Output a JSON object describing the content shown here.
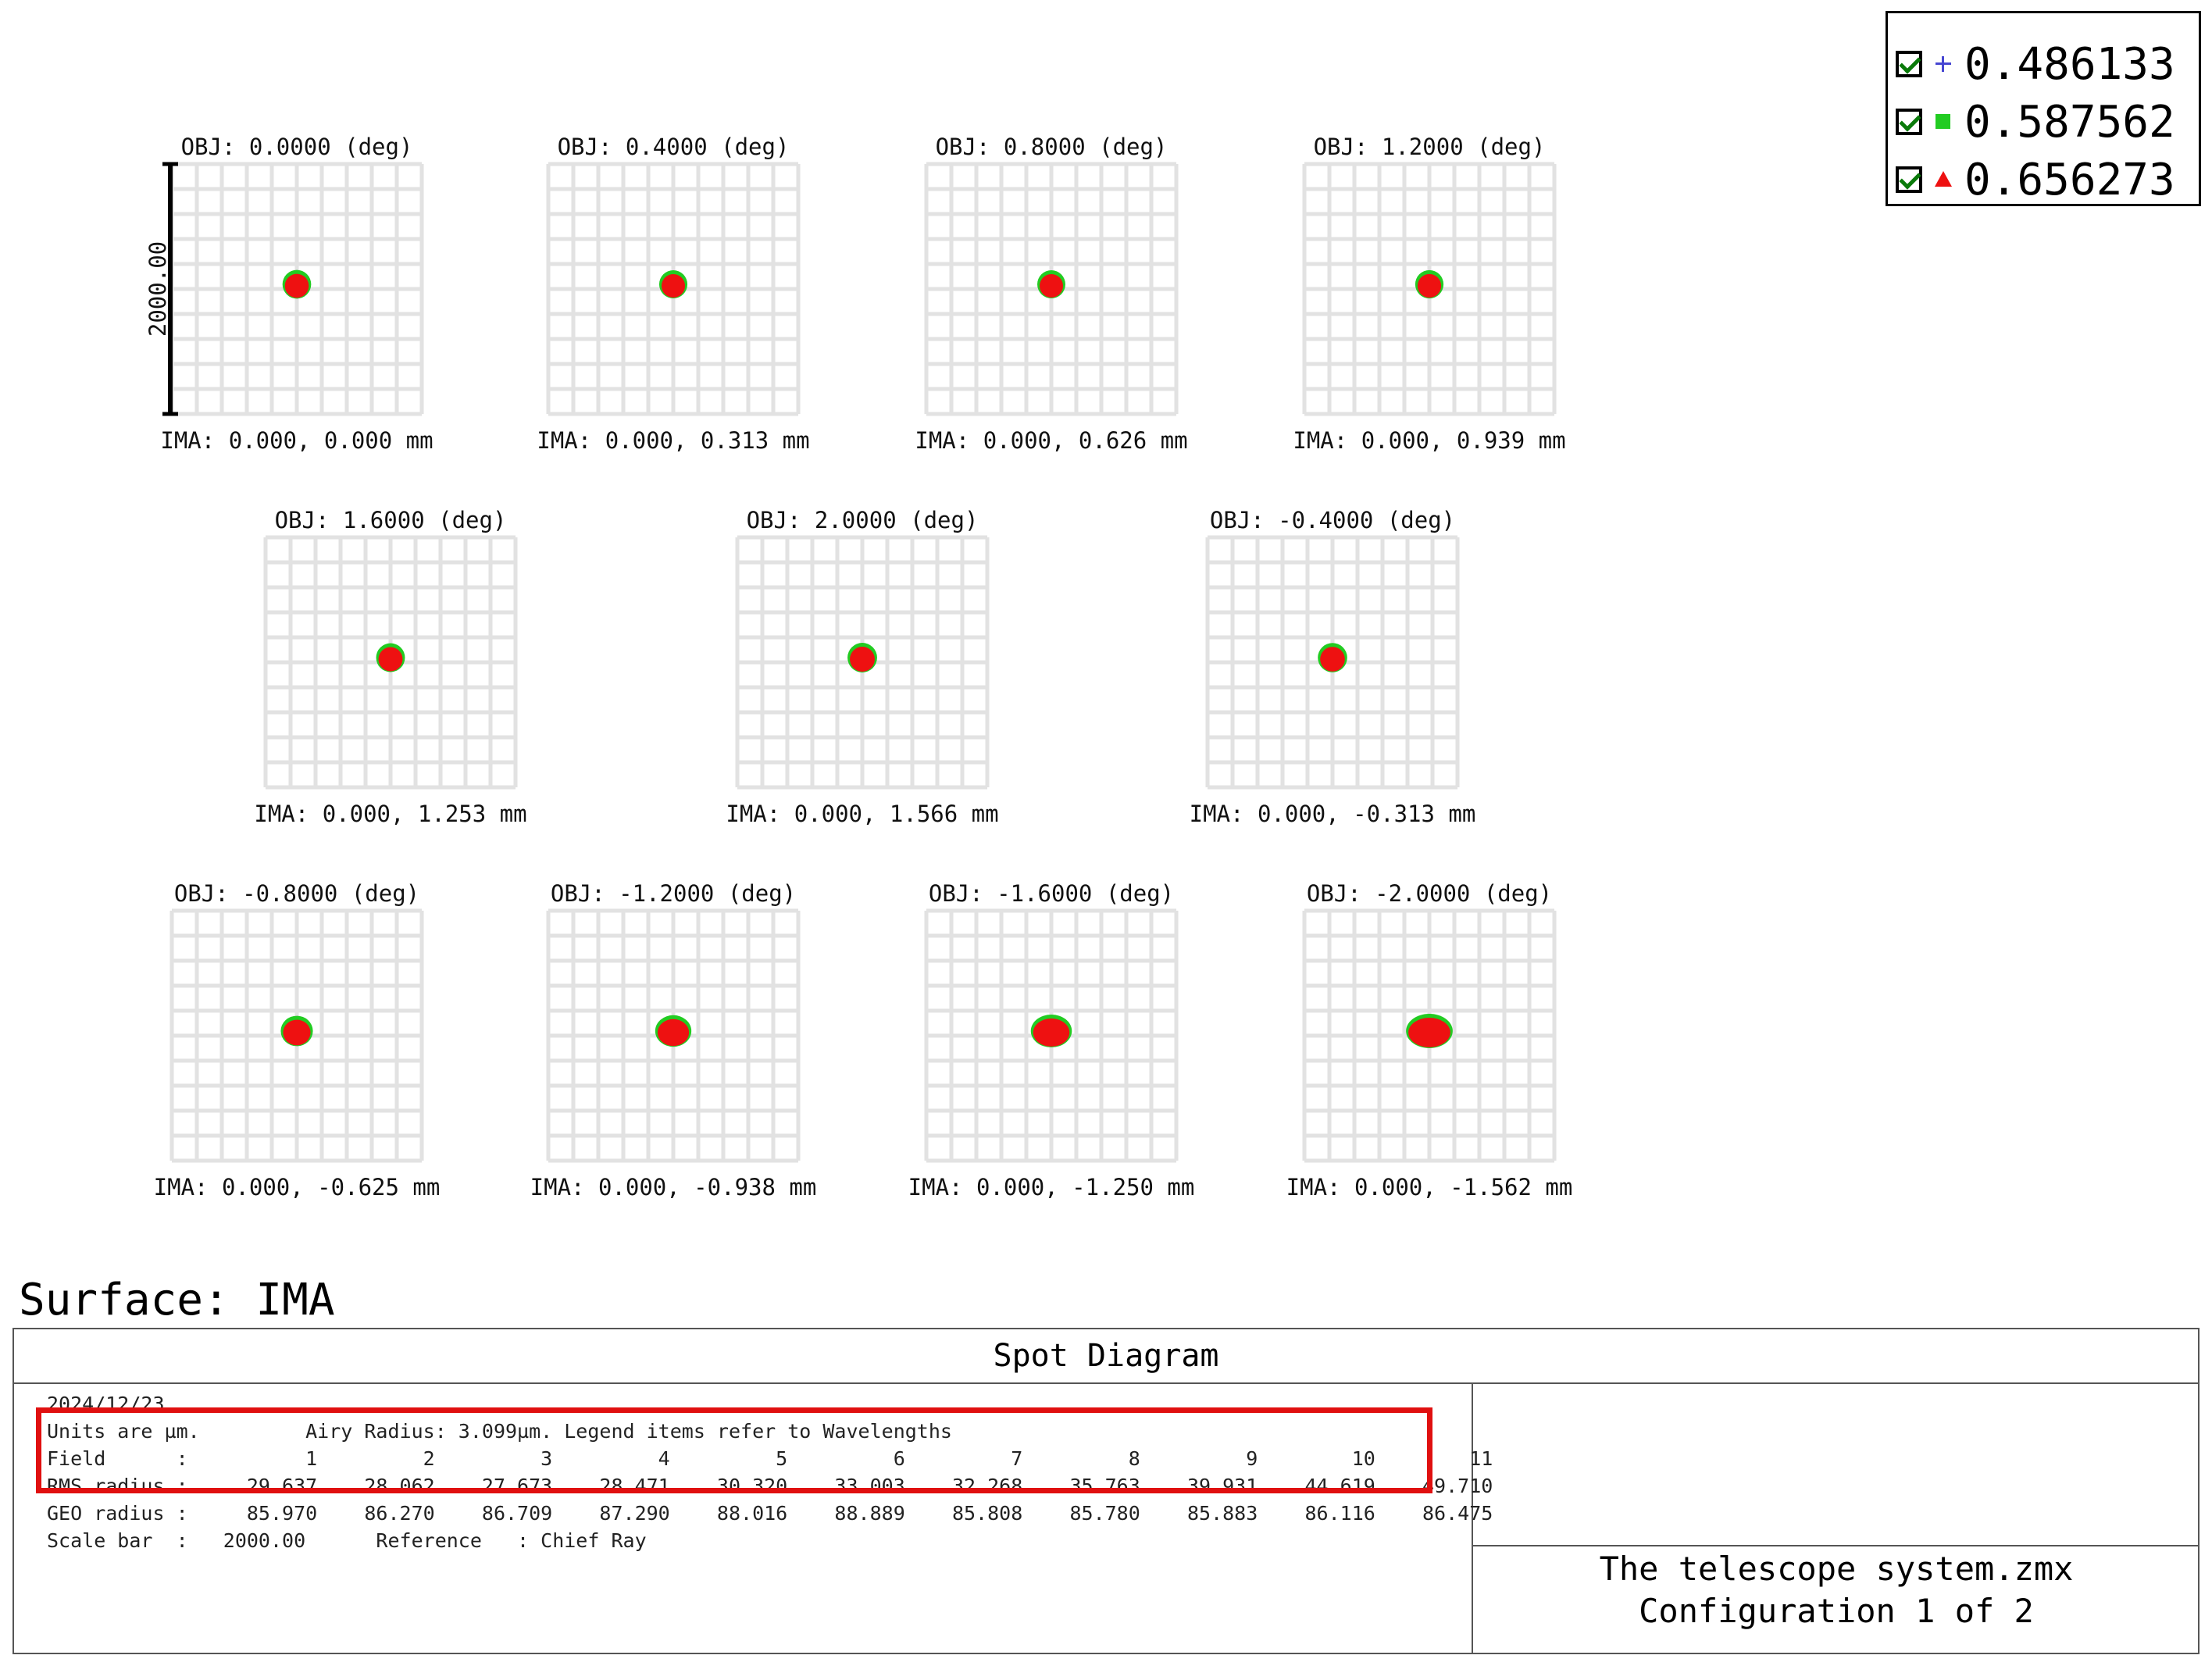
{
  "chart_data": {
    "type": "scatter",
    "title": "Spot Diagram",
    "surface": "Surface: IMA",
    "scale_bar": "2000.00",
    "legend": {
      "placement": "top-right",
      "items": [
        {
          "label": "0.486133",
          "marker": "plus",
          "color": "#4646d2",
          "checked": true
        },
        {
          "label": "0.587562",
          "marker": "square",
          "color": "#22cc22",
          "checked": true
        },
        {
          "label": "0.656273",
          "marker": "triangle",
          "color": "#ee1111",
          "checked": true
        }
      ]
    },
    "fields": [
      {
        "obj": "OBJ: 0.0000 (deg)",
        "ima": "IMA: 0.000, 0.000 mm",
        "rms_radius": 29.637,
        "geo_radius": 85.97
      },
      {
        "obj": "OBJ: 0.4000 (deg)",
        "ima": "IMA: 0.000, 0.313 mm",
        "rms_radius": 28.062,
        "geo_radius": 86.27
      },
      {
        "obj": "OBJ: 0.8000 (deg)",
        "ima": "IMA: 0.000, 0.626 mm",
        "rms_radius": 27.673,
        "geo_radius": 86.709
      },
      {
        "obj": "OBJ: 1.2000 (deg)",
        "ima": "IMA: 0.000, 0.939 mm",
        "rms_radius": 28.471,
        "geo_radius": 87.29
      },
      {
        "obj": "OBJ: 1.6000 (deg)",
        "ima": "IMA: 0.000, 1.253 mm",
        "rms_radius": 30.32,
        "geo_radius": 88.016
      },
      {
        "obj": "OBJ: 2.0000 (deg)",
        "ima": "IMA: 0.000, 1.566 mm",
        "rms_radius": 33.003,
        "geo_radius": 88.889
      },
      {
        "obj": "OBJ: -0.4000 (deg)",
        "ima": "IMA: 0.000, -0.313 mm",
        "rms_radius": 32.268,
        "geo_radius": 85.808
      },
      {
        "obj": "OBJ: -0.8000 (deg)",
        "ima": "IMA: 0.000, -0.625 mm",
        "rms_radius": 35.763,
        "geo_radius": 85.78
      },
      {
        "obj": "OBJ: -1.2000 (deg)",
        "ima": "IMA: 0.000, -0.938 mm",
        "rms_radius": 39.931,
        "geo_radius": 85.883
      },
      {
        "obj": "OBJ: -1.6000 (deg)",
        "ima": "IMA: 0.000, -1.250 mm",
        "rms_radius": 44.619,
        "geo_radius": 86.116
      },
      {
        "obj": "OBJ: -2.0000 (deg)",
        "ima": "IMA: 0.000, -1.562 mm",
        "rms_radius": 49.71,
        "geo_radius": 86.475
      }
    ]
  },
  "info": {
    "date": "2024/12/23",
    "units_line": "Units are µm.         Airy Radius: 3.099µm. Legend items refer to Wavelengths",
    "field_line": "Field      :          1         2         3         4         5         6         7         8         9        10        11",
    "rms_line": "RMS radius :     29.637    28.062    27.673    28.471    30.320    33.003    32.268    35.763    39.931    44.619    49.710",
    "geo_line": "GEO radius :     85.970    86.270    86.709    87.290    88.016    88.889    85.808    85.780    85.883    86.116    86.475",
    "scale_line": "Scale bar  :   2000.00      Reference   : Chief Ray",
    "file": "The telescope system.zmx",
    "config": "Configuration 1 of 2"
  }
}
